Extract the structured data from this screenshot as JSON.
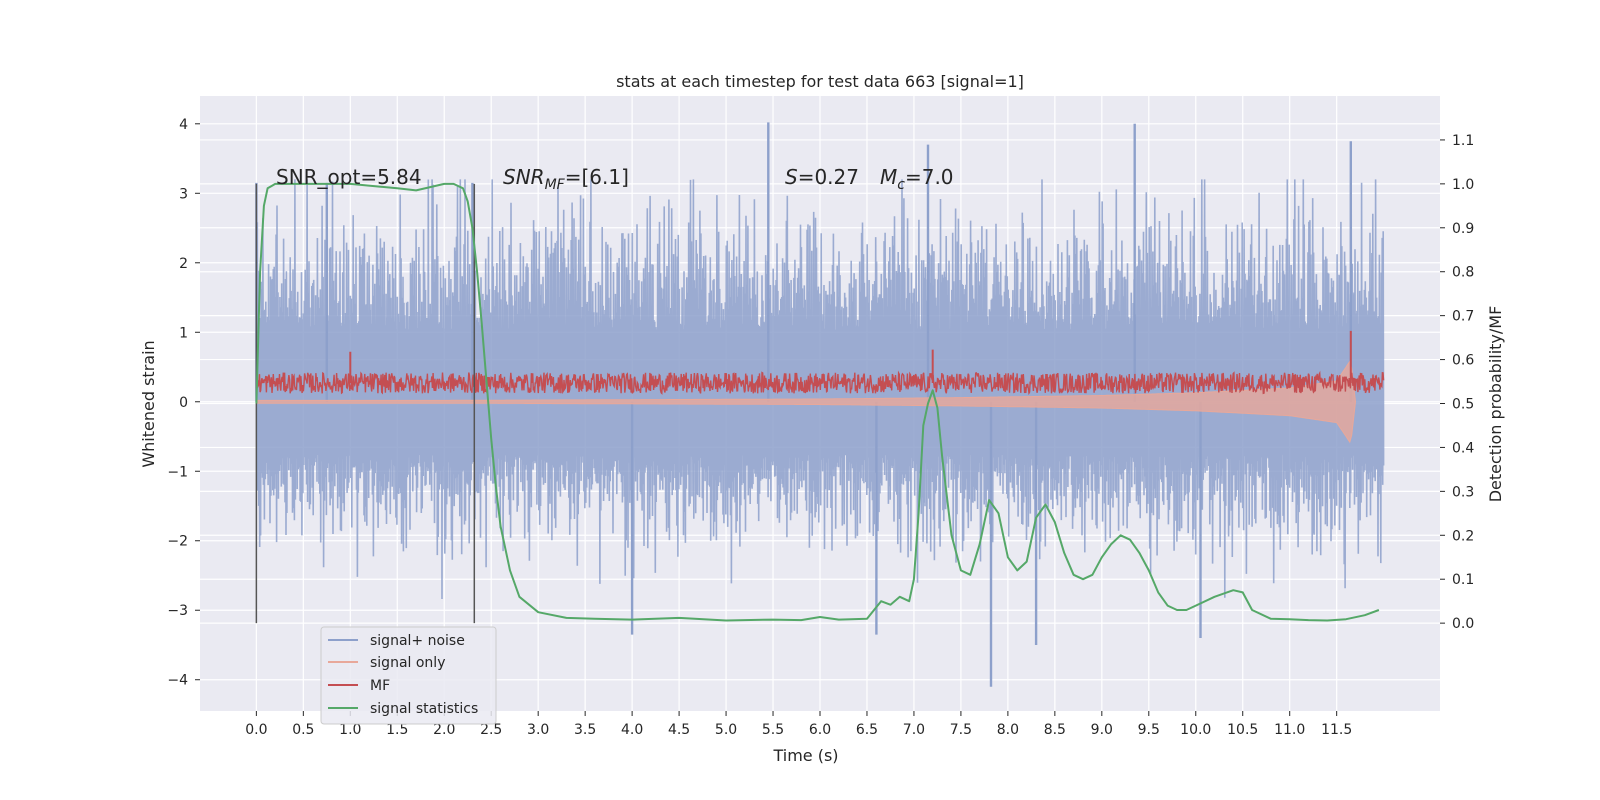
{
  "chart_data": {
    "type": "line",
    "title": "stats at each timestep for test data 663 [signal=1]",
    "xlabel": "Time (s)",
    "ylabel": "Whitened strain",
    "ylabel_right": "Detection probability/MF",
    "xlim": [
      -0.6,
      12.6
    ],
    "ylim": [
      -4.45,
      4.4
    ],
    "ylim_right": [
      -0.2,
      1.2
    ],
    "x_ticks": [
      0.0,
      0.5,
      1.0,
      1.5,
      2.0,
      2.5,
      3.0,
      3.5,
      4.0,
      4.5,
      5.0,
      5.5,
      6.0,
      6.5,
      7.0,
      7.5,
      8.0,
      8.5,
      9.0,
      9.5,
      10.0,
      10.5,
      11.0,
      11.5
    ],
    "x_tick_labels": [
      "0.0",
      "0.5",
      "1.0",
      "1.5",
      "2.0",
      "2.5",
      "3.0",
      "3.5",
      "4.0",
      "4.5",
      "5.0",
      "5.5",
      "6.0",
      "6.5",
      "7.0",
      "7.5",
      "8.0",
      "8.5",
      "9.0",
      "9.5",
      "10.0",
      "10.5",
      "11.0",
      "11.5"
    ],
    "y_ticks": [
      -4,
      -3,
      -2,
      -1,
      0,
      1,
      2,
      3,
      4
    ],
    "y_tick_labels": [
      "−4",
      "−3",
      "−2",
      "−1",
      "0",
      "1",
      "2",
      "3",
      "4"
    ],
    "y_ticks_right": [
      0.0,
      0.1,
      0.2,
      0.3,
      0.4,
      0.5,
      0.6,
      0.7,
      0.8,
      0.9,
      1.0,
      1.1
    ],
    "y_tick_labels_right": [
      "0.0",
      "0.1",
      "0.2",
      "0.3",
      "0.4",
      "0.5",
      "0.6",
      "0.7",
      "0.8",
      "0.9",
      "1.0",
      "1.1"
    ],
    "grid": true,
    "legend_position": "lower-left",
    "vertical_lines": [
      0.0,
      2.32
    ],
    "annotations": {
      "snr_opt": "SNR_opt=5.84",
      "snr_mf": "SNR",
      "snr_mf_sub": "MF",
      "snr_mf_value": "=[6.1]",
      "s_symbol": "S",
      "s_value": "=0.27",
      "mc_symbol": "M",
      "mc_sub": "c",
      "mc_value": "=7.0"
    },
    "series": [
      {
        "name": "signal+ noise",
        "color": "#8da0cb",
        "axis": "left",
        "time_span": [
          0.0,
          12.0
        ],
        "sample_count": 2400,
        "typical_envelope": [
          -1.7,
          2.3
        ],
        "peak_values": [
          {
            "x": 0.0,
            "y": 3.15
          },
          {
            "x": 0.75,
            "y": 3.15
          },
          {
            "x": 2.3,
            "y": 3.15
          },
          {
            "x": 5.45,
            "y": 4.02
          },
          {
            "x": 7.15,
            "y": 3.7
          },
          {
            "x": 9.35,
            "y": 4.0
          },
          {
            "x": 11.65,
            "y": 3.75
          },
          {
            "x": 7.82,
            "y": -4.1
          },
          {
            "x": 8.3,
            "y": -3.5
          },
          {
            "x": 4.0,
            "y": -3.35
          },
          {
            "x": 10.05,
            "y": -3.4
          },
          {
            "x": 6.6,
            "y": -3.35
          }
        ]
      },
      {
        "name": "signal only",
        "color": "#e8a89a",
        "axis": "left",
        "amplitude_points": [
          [
            0.0,
            0.02
          ],
          [
            2.0,
            0.02
          ],
          [
            4.0,
            0.03
          ],
          [
            6.0,
            0.04
          ],
          [
            7.5,
            0.06
          ],
          [
            9.0,
            0.09
          ],
          [
            10.0,
            0.13
          ],
          [
            11.0,
            0.2
          ],
          [
            11.5,
            0.3
          ],
          [
            11.65,
            0.6
          ],
          [
            11.7,
            0.0
          ]
        ]
      },
      {
        "name": "MF",
        "color": "#c44e52",
        "axis": "left",
        "baseline": 0.27,
        "jitter": 0.15,
        "peak_values": [
          {
            "x": 1.0,
            "y": 0.72
          },
          {
            "x": 7.2,
            "y": 0.75
          },
          {
            "x": 11.65,
            "y": 1.02
          }
        ]
      },
      {
        "name": "signal statistics",
        "color": "#55a868",
        "axis": "right",
        "x": [
          0.0,
          0.04,
          0.08,
          0.12,
          0.16,
          0.2,
          0.3,
          0.5,
          1.0,
          1.5,
          1.7,
          2.0,
          2.1,
          2.2,
          2.25,
          2.3,
          2.35,
          2.4,
          2.45,
          2.5,
          2.55,
          2.6,
          2.7,
          2.8,
          3.0,
          3.3,
          3.6,
          4.0,
          4.5,
          5.0,
          5.5,
          5.8,
          6.0,
          6.2,
          6.5,
          6.65,
          6.75,
          6.85,
          6.95,
          7.0,
          7.05,
          7.1,
          7.15,
          7.2,
          7.25,
          7.3,
          7.4,
          7.5,
          7.6,
          7.7,
          7.8,
          7.9,
          8.0,
          8.1,
          8.2,
          8.3,
          8.4,
          8.5,
          8.6,
          8.7,
          8.8,
          8.9,
          9.0,
          9.1,
          9.2,
          9.3,
          9.4,
          9.5,
          9.6,
          9.7,
          9.8,
          9.9,
          10.0,
          10.2,
          10.4,
          10.5,
          10.6,
          10.8,
          11.0,
          11.2,
          11.4,
          11.6,
          11.8,
          11.95
        ],
        "y": [
          0.5,
          0.8,
          0.95,
          0.99,
          0.995,
          1.0,
          1.0,
          1.0,
          1.0,
          0.99,
          0.985,
          1.0,
          1.0,
          0.99,
          0.96,
          0.9,
          0.8,
          0.68,
          0.55,
          0.42,
          0.31,
          0.22,
          0.12,
          0.06,
          0.025,
          0.012,
          0.01,
          0.008,
          0.012,
          0.006,
          0.008,
          0.007,
          0.014,
          0.008,
          0.01,
          0.05,
          0.042,
          0.06,
          0.05,
          0.1,
          0.25,
          0.45,
          0.5,
          0.53,
          0.49,
          0.38,
          0.2,
          0.12,
          0.11,
          0.18,
          0.28,
          0.25,
          0.15,
          0.12,
          0.14,
          0.24,
          0.27,
          0.23,
          0.16,
          0.11,
          0.1,
          0.11,
          0.15,
          0.18,
          0.2,
          0.19,
          0.16,
          0.12,
          0.07,
          0.04,
          0.03,
          0.03,
          0.04,
          0.06,
          0.075,
          0.07,
          0.03,
          0.01,
          0.009,
          0.007,
          0.006,
          0.009,
          0.018,
          0.03
        ]
      }
    ]
  }
}
